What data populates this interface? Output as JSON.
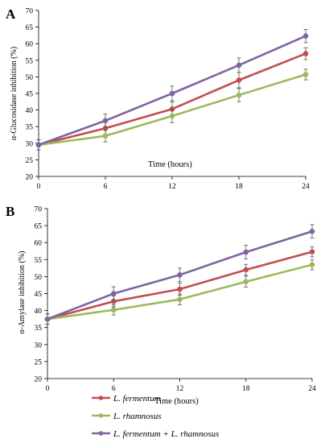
{
  "chart_data": [
    {
      "type": "line",
      "panel_label": "A",
      "ylabel": "α-Glucosidase inhibition (%)",
      "xlabel": "Time (hours)",
      "x": [
        0,
        6,
        12,
        18,
        24
      ],
      "x_ticks": [
        "0",
        "6",
        "12",
        "18",
        "24"
      ],
      "ylim": [
        20,
        70
      ],
      "y_ticks": [
        "20",
        "25",
        "30",
        "35",
        "40",
        "45",
        "50",
        "55",
        "60",
        "65",
        "70"
      ],
      "grid": false,
      "series": [
        {
          "name": "L. fermentum",
          "color": "#c0504d",
          "values": [
            29.5,
            34.5,
            40.3,
            49.0,
            57.0
          ],
          "errors": [
            1.5,
            1.8,
            2.2,
            2.3,
            1.8
          ]
        },
        {
          "name": "L. rhamnosus",
          "color": "#9bbb59",
          "values": [
            29.5,
            32.2,
            38.2,
            44.5,
            50.7
          ],
          "errors": [
            1.5,
            1.8,
            2.0,
            2.0,
            1.6
          ]
        },
        {
          "name": "L. fermentum + L. rhamnosus",
          "color": "#8064a2",
          "values": [
            29.5,
            36.8,
            45.0,
            53.5,
            62.3
          ],
          "errors": [
            1.5,
            2.0,
            2.2,
            2.2,
            2.0
          ]
        }
      ]
    },
    {
      "type": "line",
      "panel_label": "B",
      "ylabel": "α-Amylase inhibition (%)",
      "xlabel": "Time (hours)",
      "x": [
        0,
        6,
        12,
        18,
        24
      ],
      "x_ticks": [
        "0",
        "6",
        "12",
        "18",
        "24"
      ],
      "ylim": [
        20,
        70
      ],
      "y_ticks": [
        "20",
        "25",
        "30",
        "35",
        "40",
        "45",
        "50",
        "55",
        "60",
        "65",
        "70"
      ],
      "grid": false,
      "series": [
        {
          "name": "L. fermentum",
          "color": "#c0504d",
          "values": [
            37.5,
            42.7,
            46.3,
            52.0,
            57.3
          ],
          "errors": [
            1.5,
            1.6,
            1.8,
            1.6,
            1.5
          ]
        },
        {
          "name": "L. rhamnosus",
          "color": "#9bbb59",
          "values": [
            37.5,
            40.2,
            43.3,
            48.5,
            53.5
          ],
          "errors": [
            1.5,
            1.5,
            1.6,
            1.6,
            1.5
          ]
        },
        {
          "name": "L. fermentum + L. rhamnosus",
          "color": "#8064a2",
          "values": [
            37.5,
            45.0,
            50.5,
            57.2,
            63.3
          ],
          "errors": [
            1.5,
            2.0,
            2.0,
            2.0,
            2.0
          ]
        }
      ]
    }
  ],
  "legend": {
    "placement": "bottom",
    "items": [
      {
        "label": "L. fermentum",
        "color": "#c0504d"
      },
      {
        "label": "L. rhamnosus",
        "color": "#9bbb59"
      },
      {
        "label": "L. fermentum + L. rhamnosus",
        "color": "#8064a2"
      }
    ]
  }
}
